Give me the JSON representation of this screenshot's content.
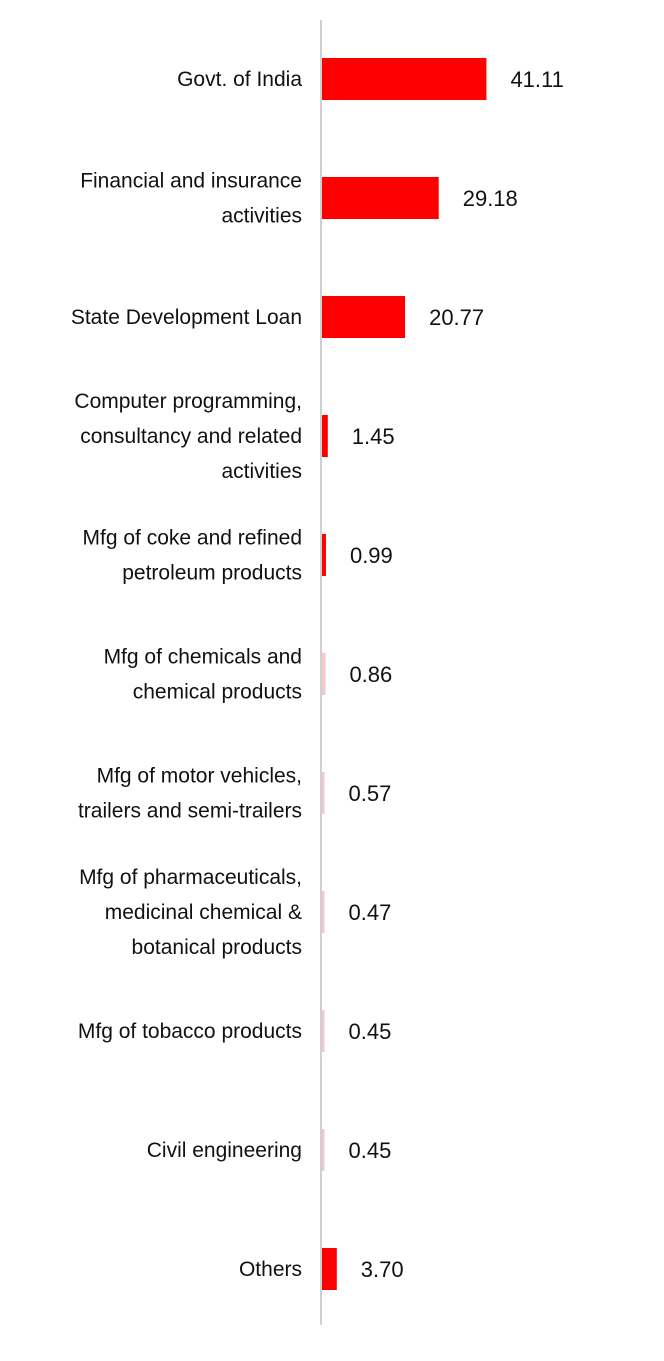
{
  "chart_data": {
    "type": "bar",
    "orientation": "horizontal",
    "categories": [
      [
        "Govt. of India"
      ],
      [
        "Financial and insurance",
        "activities"
      ],
      [
        "State Development Loan"
      ],
      [
        "Computer programming,",
        "consultancy and related",
        "activities"
      ],
      [
        "Mfg of coke and refined",
        "petroleum products"
      ],
      [
        "Mfg of chemicals and",
        "chemical products"
      ],
      [
        "Mfg of motor vehicles,",
        "trailers and semi-trailers"
      ],
      [
        "Mfg of pharmaceuticals,",
        "medicinal chemical &",
        "botanical products"
      ],
      [
        "Mfg of tobacco products"
      ],
      [
        "Civil engineering"
      ],
      [
        "Others"
      ]
    ],
    "values": [
      41.11,
      29.18,
      20.77,
      1.45,
      0.99,
      0.86,
      0.57,
      0.47,
      0.45,
      0.45,
      3.7
    ],
    "value_labels": [
      "41.11",
      "29.18",
      "20.77",
      "1.45",
      "0.99",
      "0.86",
      "0.57",
      "0.47",
      "0.45",
      "0.45",
      "3.70"
    ],
    "title": "",
    "xlabel": "",
    "ylabel": "",
    "xlim": [
      0,
      100
    ],
    "grid": false,
    "legend": "none",
    "colors": {
      "bar": "#ff0000",
      "bar_faint": "#f4c7cc",
      "axis": "#d0d0d0",
      "text": "#111111"
    }
  }
}
